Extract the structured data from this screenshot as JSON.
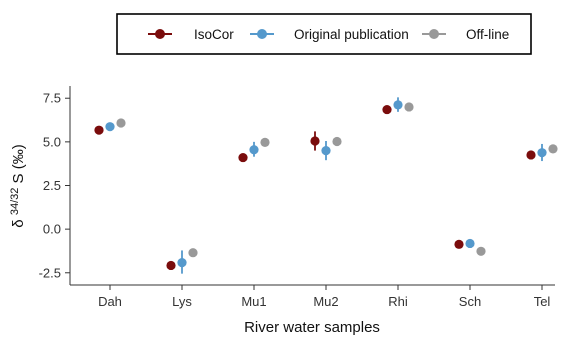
{
  "chart_data": {
    "type": "scatter",
    "categories": [
      "Dah",
      "Lys",
      "Mu1",
      "Mu2",
      "Rhi",
      "Sch",
      "Tel"
    ],
    "xlabel": "River water samples",
    "ylabel": {
      "prefix": "δ ",
      "superscript": "34/32",
      "suffix": " S (‰)"
    },
    "ylim": [
      -3.2,
      8.2
    ],
    "yticks": [
      -2.5,
      0.0,
      2.5,
      5.0,
      7.5
    ],
    "ytick_labels": [
      "-2.5",
      "0.0",
      "2.5",
      "5.0",
      "7.5"
    ],
    "grid": false,
    "legend_position": "top",
    "series": [
      {
        "name": "IsoCor",
        "color": "#7a0c0c",
        "values": [
          5.67,
          -2.08,
          4.1,
          5.05,
          6.85,
          -0.87,
          4.25
        ],
        "err_low": [
          5.67,
          -2.08,
          4.1,
          4.5,
          6.85,
          -0.87,
          4.25
        ],
        "err_high": [
          5.67,
          -2.08,
          4.1,
          5.6,
          6.85,
          -0.87,
          4.25
        ]
      },
      {
        "name": "Original publication",
        "color": "#5599cc",
        "values": [
          5.87,
          -1.92,
          4.55,
          4.5,
          7.12,
          -0.82,
          4.38
        ],
        "err_low": [
          5.87,
          -2.55,
          4.15,
          3.95,
          6.72,
          -0.82,
          3.9
        ],
        "err_high": [
          5.87,
          -1.22,
          5.0,
          5.05,
          7.55,
          -0.82,
          4.88
        ]
      },
      {
        "name": "Off-line",
        "color": "#999999",
        "values": [
          6.08,
          -1.35,
          4.97,
          5.02,
          7.0,
          -1.27,
          4.6
        ],
        "err_low": [
          6.08,
          -1.35,
          4.97,
          5.02,
          7.0,
          -1.27,
          4.6
        ],
        "err_high": [
          6.08,
          -1.35,
          4.97,
          5.02,
          7.0,
          -1.27,
          4.6
        ]
      }
    ]
  }
}
